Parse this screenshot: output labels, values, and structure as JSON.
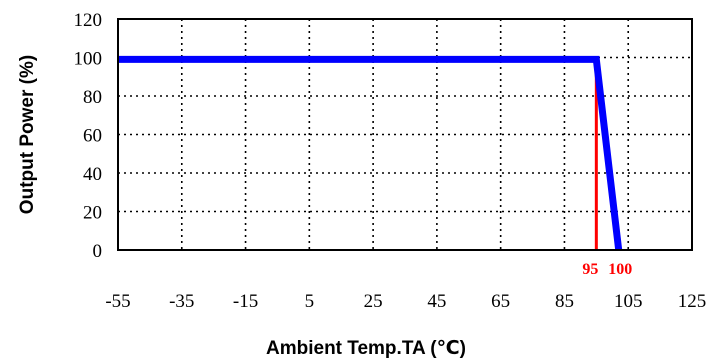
{
  "chart_data": {
    "type": "line",
    "xlabel": "Ambient Temp.TA (℃)",
    "ylabel": "Output Power (%)",
    "xlim": [
      -55,
      125
    ],
    "ylim": [
      0,
      120
    ],
    "x_ticks": [
      -55,
      -35,
      -15,
      5,
      25,
      45,
      65,
      85,
      105,
      125
    ],
    "y_ticks": [
      0,
      20,
      40,
      60,
      80,
      100,
      120
    ],
    "grid": true,
    "grid_style": "dotted",
    "series": [
      {
        "color": "#0000ff",
        "points": [
          [
            -55,
            99
          ],
          [
            95,
            99
          ],
          [
            102,
            0
          ]
        ]
      }
    ],
    "markers": [
      {
        "x": 95,
        "label": "95",
        "color": "#ff0000"
      },
      {
        "x": 100,
        "label": "100",
        "color": "#ff0000"
      }
    ],
    "vertical_lines": [
      {
        "x": 95,
        "y_from": 0,
        "y_to": 99,
        "color": "#ff0000"
      }
    ]
  }
}
